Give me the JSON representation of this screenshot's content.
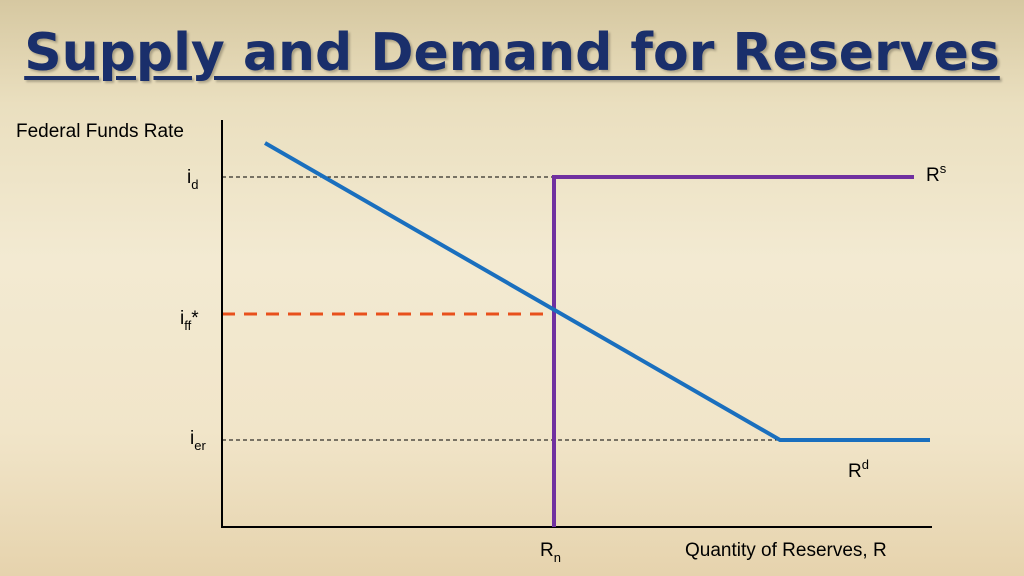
{
  "title": "Supply and Demand for Reserves",
  "axes": {
    "y_label": "Federal Funds Rate",
    "x_label": "Quantity of Reserves, R"
  },
  "rate_labels": {
    "i_d": {
      "base": "i",
      "sub": "d"
    },
    "i_ff": {
      "base": "i",
      "sub": "ff",
      "suffix": "*"
    },
    "i_er": {
      "base": "i",
      "sub": "er"
    }
  },
  "quantity_labels": {
    "R_n": {
      "base": "R",
      "sub": "n"
    }
  },
  "curves": {
    "supply": {
      "base": "R",
      "sup": "s",
      "color": "#7030a0"
    },
    "demand": {
      "base": "R",
      "sup": "d",
      "color": "#1a6fbe"
    }
  },
  "colors": {
    "title": "#1a2f6b",
    "equilibrium_guide": "#e8501c",
    "guide": "#000000",
    "axis": "#000000"
  }
}
